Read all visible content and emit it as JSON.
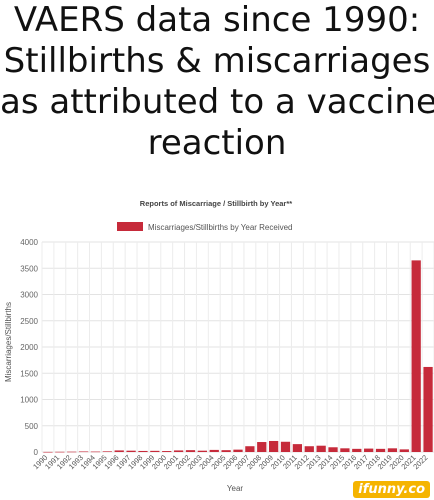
{
  "headline": {
    "lines": [
      "VAERS data since 1990:",
      "Stillbirths & miscarriages",
      "as attributed to a vaccine",
      "reaction"
    ]
  },
  "chart_data": {
    "type": "bar",
    "title": "Reports of Miscarriage / Stillbirth by Year**",
    "xlabel": "Year",
    "ylabel": "Miscarriages/Stillbirths",
    "ylim": [
      0,
      4000
    ],
    "yticks": [
      0,
      500,
      1000,
      1500,
      2000,
      2500,
      3000,
      3500,
      4000
    ],
    "grid": true,
    "legend_position": "top",
    "categories": [
      "1990",
      "1991",
      "1992",
      "1993",
      "1994",
      "1995",
      "1996",
      "1997",
      "1998",
      "1999",
      "2000",
      "2001",
      "2002",
      "2003",
      "2004",
      "2005",
      "2006",
      "2007",
      "2008",
      "2009",
      "2010",
      "2011",
      "2012",
      "2013",
      "2014",
      "2015",
      "2016",
      "2017",
      "2018",
      "2019",
      "2020",
      "2021",
      "2022"
    ],
    "series": [
      {
        "name": "Miscarriages/Stillbirths by Year Received",
        "color": "#c62a3a",
        "values": [
          2,
          4,
          6,
          10,
          8,
          12,
          30,
          25,
          20,
          22,
          18,
          30,
          35,
          25,
          40,
          35,
          45,
          110,
          190,
          210,
          195,
          150,
          110,
          120,
          90,
          70,
          60,
          65,
          60,
          70,
          50,
          3650,
          1620
        ]
      }
    ]
  },
  "watermark": "ifunny.co"
}
